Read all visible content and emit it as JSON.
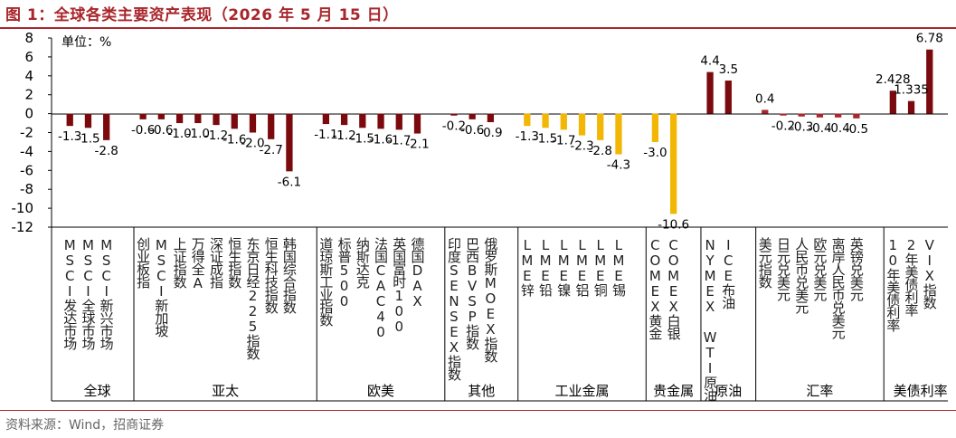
{
  "title": "图 1：全球各类主要资产表现（2026 年 5 月 15 日）",
  "source": "资料来源：Wind，招商证券",
  "colors": {
    "brand": "#A8272C",
    "dark": "#7A0A0E",
    "gray": "#808080",
    "gold": "#F2B705"
  },
  "chart_data": {
    "type": "bar",
    "unit_label": "单位：%",
    "ylim": [
      -12,
      8
    ],
    "yticks": [
      8,
      6,
      4,
      2,
      0,
      -2,
      -4,
      -6,
      -8,
      -10,
      -12
    ],
    "grid": false,
    "groups": [
      {
        "name": "全球",
        "color": "dark",
        "items": [
          {
            "label": "MSCI发达市场",
            "value": -1.3,
            "text": "-1.3"
          },
          {
            "label": "MSCI全球市场",
            "value": -1.5,
            "text": "-1.5"
          },
          {
            "label": "MSCI新兴市场",
            "value": -2.8,
            "text": "-2.8"
          }
        ]
      },
      {
        "name": "亚太",
        "color": "dark",
        "items": [
          {
            "label": "创业板指",
            "value": -0.6,
            "text": "-0.6"
          },
          {
            "label": "MSCI新加坡",
            "value": -0.6,
            "text": "-0.6"
          },
          {
            "label": "上证指数",
            "value": -1.0,
            "text": "-1.0"
          },
          {
            "label": "万得全A",
            "value": -1.0,
            "text": "-1.0"
          },
          {
            "label": "深证成指",
            "value": -1.2,
            "text": "-1.2"
          },
          {
            "label": "恒生指数",
            "value": -1.6,
            "text": "-1.6"
          },
          {
            "label": "东京日经225指数",
            "value": -2.0,
            "text": "-2.0"
          },
          {
            "label": "恒生科技指数",
            "value": -2.7,
            "text": "-2.7"
          },
          {
            "label": "韩国综合指数",
            "value": -6.1,
            "text": "-6.1"
          }
        ]
      },
      {
        "name": "欧美",
        "color": "dark",
        "items": [
          {
            "label": "道琼斯工业指数",
            "value": -1.1,
            "text": "-1.1"
          },
          {
            "label": "标普500",
            "value": -1.2,
            "text": "-1.2"
          },
          {
            "label": "纳斯达克",
            "value": -1.5,
            "text": "-1.5"
          },
          {
            "label": "法国CAC40",
            "value": -1.6,
            "text": "-1.6"
          },
          {
            "label": "英国富时100",
            "value": -1.7,
            "text": "-1.7"
          },
          {
            "label": "德国DAX",
            "value": -2.1,
            "text": "-2.1"
          }
        ]
      },
      {
        "name": "其他",
        "color": "dark",
        "items": [
          {
            "label": "印度SENSEX指数",
            "value": -0.2,
            "text": "-0.2"
          },
          {
            "label": "巴西BVSP指数",
            "value": -0.6,
            "text": "-0.6"
          },
          {
            "label": "俄罗斯MOEX指数",
            "value": -0.9,
            "text": "-0.9"
          }
        ]
      },
      {
        "name": "工业金属",
        "color": "gold",
        "items": [
          {
            "label": "LME锌",
            "value": -1.3,
            "text": "-1.3"
          },
          {
            "label": "LME铅",
            "value": -1.5,
            "text": "-1.5"
          },
          {
            "label": "LME镍",
            "value": -1.7,
            "text": "-1.7"
          },
          {
            "label": "LME铝",
            "value": -2.3,
            "text": "-2.3"
          },
          {
            "label": "LME铜",
            "value": -2.8,
            "text": "-2.8"
          },
          {
            "label": "LME锡",
            "value": -4.3,
            "text": "-4.3"
          }
        ]
      },
      {
        "name": "贵金属",
        "color": "gold",
        "items": [
          {
            "label": "COMEX黄金",
            "value": -3.0,
            "text": "-3.0"
          },
          {
            "label": "COMEX白银",
            "value": -10.6,
            "text": "-10.6"
          }
        ]
      },
      {
        "name": "原油",
        "color": "dark",
        "items": [
          {
            "label": "NYMEX WTI原油",
            "value": 4.4,
            "text": "4.4"
          },
          {
            "label": "ICE布油",
            "value": 3.5,
            "text": "3.5"
          }
        ]
      },
      {
        "name": "汇率",
        "color": "red",
        "items": [
          {
            "label": "美元指数",
            "value": 0.4,
            "text": "0.4"
          },
          {
            "label": "日元兑美元",
            "value": -0.2,
            "text": "-0.2"
          },
          {
            "label": "人民币兑美元",
            "value": -0.3,
            "text": "-0.3"
          },
          {
            "label": "欧元兑美元",
            "value": -0.4,
            "text": "-0.4"
          },
          {
            "label": "离岸人民币兑美元",
            "value": -0.4,
            "text": "-0.4"
          },
          {
            "label": "英镑兑美元",
            "value": -0.5,
            "text": "-0.5"
          }
        ]
      },
      {
        "name": "美债利率",
        "color": "dark",
        "items": [
          {
            "label": "10年美债利率",
            "value": 2.428,
            "text": "2.428"
          },
          {
            "label": "2年美债利率",
            "value": 1.335,
            "text": "1.335"
          },
          {
            "label": "VIX指数",
            "value": 6.78,
            "text": "6.78"
          }
        ]
      }
    ]
  }
}
